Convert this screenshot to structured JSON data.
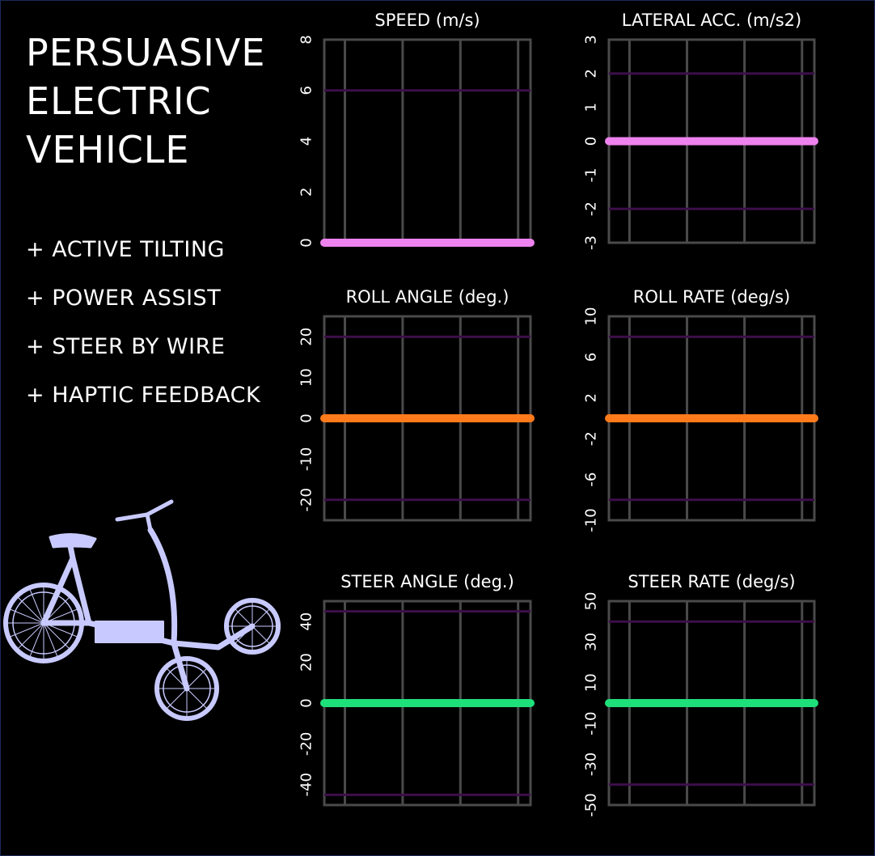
{
  "header": {
    "title_lines": [
      "PERSUASIVE",
      "ELECTRIC",
      "VEHICLE"
    ],
    "features": [
      "+ ACTIVE TILTING",
      "+ POWER ASSIST",
      "+ STEER BY WIRE",
      "+ HAPTIC FEEDBACK"
    ]
  },
  "icons": {
    "vehicle": "tilting-trike-icon"
  },
  "colors": {
    "background": "#000000",
    "grid": "#4a4a4a",
    "limit_line": "#3d0f4a",
    "speed": "#ee82ee",
    "roll": "#ff7a1a",
    "steer": "#1ee07a",
    "vehicle": "#c8caff"
  },
  "chart_data": [
    {
      "type": "line",
      "title": "SPEED (m/s)",
      "ylim": [
        0,
        8
      ],
      "yticks": [
        "0",
        "2",
        "4",
        "6",
        "8"
      ],
      "limits": [
        6
      ],
      "x": [
        0,
        1
      ],
      "series": [
        {
          "values": [
            0,
            0
          ],
          "color": "#ee82ee"
        }
      ],
      "grid": true
    },
    {
      "type": "line",
      "title": "LATERAL ACC. (m/s2)",
      "ylim": [
        -3,
        3
      ],
      "yticks": [
        "-3",
        "-2",
        "-1",
        "0",
        "1",
        "2",
        "3"
      ],
      "limits": [
        2,
        -2
      ],
      "x": [
        0,
        1
      ],
      "series": [
        {
          "values": [
            0,
            0
          ],
          "color": "#ee82ee"
        }
      ],
      "grid": true
    },
    {
      "type": "line",
      "title": "ROLL ANGLE (deg.)",
      "ylim": [
        -25,
        25
      ],
      "yticks": [
        "-20",
        "-10",
        "0",
        "10",
        "20"
      ],
      "limits": [
        20,
        -20
      ],
      "x": [
        0,
        1
      ],
      "series": [
        {
          "values": [
            0,
            0
          ],
          "color": "#ff7a1a"
        }
      ],
      "grid": true
    },
    {
      "type": "line",
      "title": "ROLL RATE (deg/s)",
      "ylim": [
        -10,
        10
      ],
      "yticks": [
        "-10",
        "-6",
        "-2",
        "2",
        "6",
        "10"
      ],
      "limits": [
        8,
        -8
      ],
      "x": [
        0,
        1
      ],
      "series": [
        {
          "values": [
            0,
            0
          ],
          "color": "#ff7a1a"
        }
      ],
      "grid": true
    },
    {
      "type": "line",
      "title": "STEER ANGLE (deg.)",
      "ylim": [
        -50,
        50
      ],
      "yticks": [
        "-40",
        "-20",
        "0",
        "20",
        "40"
      ],
      "limits": [
        45,
        -45
      ],
      "x": [
        0,
        1
      ],
      "series": [
        {
          "values": [
            0,
            0
          ],
          "color": "#1ee07a"
        }
      ],
      "grid": true
    },
    {
      "type": "line",
      "title": "STEER RATE (deg/s)",
      "ylim": [
        -50,
        50
      ],
      "yticks": [
        "-50",
        "-30",
        "-10",
        "10",
        "30",
        "50"
      ],
      "limits": [
        40,
        -40
      ],
      "x": [
        0,
        1
      ],
      "series": [
        {
          "values": [
            0,
            0
          ],
          "color": "#1ee07a"
        }
      ],
      "grid": true
    }
  ]
}
